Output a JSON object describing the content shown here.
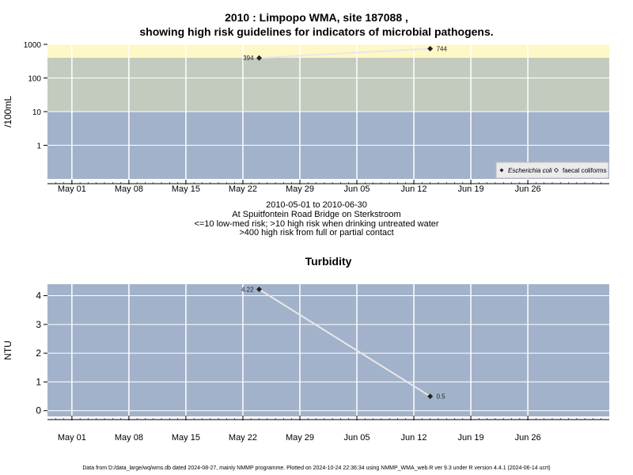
{
  "header": {
    "title_line1": "2010 : Limpopo WMA, site 187088 ,",
    "title_line2": "showing high risk guidelines for indicators of microbial pathogens."
  },
  "subtitle": {
    "line1": "2010-05-01 to 2010-06-30",
    "line2": "At Spuitfontein Road Bridge on Sterkstroom",
    "line3": "<=10 low-med risk; >10 high risk when drinking untreated water",
    "line4": ">400 high risk from full or partial contact"
  },
  "footer": "Data from D:/data_large/wq/wms.db dated 2024-08-27, mainly NMMP programme. Plotted on 2024-10-24 22:36:34 using NMMP_WMA_web.R ver 9.3 under R version 4.4.1 (2024-06-14 ucrt)",
  "colors": {
    "low": "#a2b2cb",
    "mid": "#c3cbbf",
    "high": "#fdf8c6",
    "panel": "#a2b2cb",
    "grid": "#ffffff",
    "line": "#e8e8e8",
    "point": "#222222"
  },
  "chart_data": [
    {
      "type": "line",
      "title": "",
      "ylabel": "/100mL",
      "xlabel": "",
      "yscale": "log",
      "ylim": [
        0.1,
        1000
      ],
      "xlim": [
        "2010-04-28",
        "2010-07-06"
      ],
      "x_ticks": [
        "May 01",
        "May 08",
        "May 15",
        "May 22",
        "May 29",
        "Jun 05",
        "Jun 12",
        "Jun 19",
        "Jun 26"
      ],
      "y_ticks": [
        "1",
        "10",
        "100",
        "1000"
      ],
      "risk_bands": [
        {
          "from": 0.1,
          "to": 10
        },
        {
          "from": 10,
          "to": 400
        },
        {
          "from": 400,
          "to": 1000
        }
      ],
      "series": [
        {
          "name": "Escherichia coli",
          "x": [
            "2010-05-24",
            "2010-06-14"
          ],
          "y": [
            394,
            744
          ],
          "labels": [
            "394",
            "744"
          ]
        }
      ],
      "legend_entries": [
        "Escherichia coli",
        "faecal coliforms"
      ],
      "legend": "bottom-right",
      "grid": true
    },
    {
      "type": "line",
      "title": "Turbidity",
      "ylabel": "NTU",
      "xlabel": "",
      "ylim": [
        -0.2,
        4.4
      ],
      "xlim": [
        "2010-04-28",
        "2010-07-06"
      ],
      "x_ticks": [
        "May 01",
        "May 08",
        "May 15",
        "May 22",
        "May 29",
        "Jun 05",
        "Jun 12",
        "Jun 19",
        "Jun 26"
      ],
      "y_ticks": [
        "0",
        "1",
        "2",
        "3",
        "4"
      ],
      "series": [
        {
          "x": [
            "2010-05-24",
            "2010-06-14"
          ],
          "y": [
            4.22,
            0.5
          ],
          "labels": [
            "4.22",
            "0.5"
          ]
        }
      ],
      "grid": true
    }
  ]
}
